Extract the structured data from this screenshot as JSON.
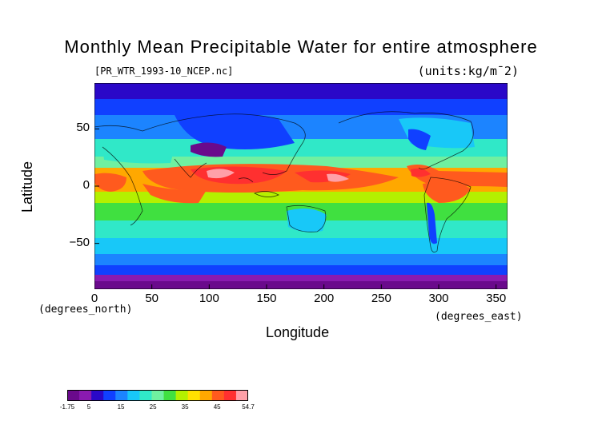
{
  "title": "Monthly Mean Precipitable Water for entire atmosphere",
  "file_label": "[PR_WTR_1993-10_NCEP.nc]",
  "units_label": "(units:kg/m^2)",
  "colors": {
    "scale": [
      "#6a0a8c",
      "#8a1ab0",
      "#2a08c8",
      "#1040ff",
      "#1c84ff",
      "#18c8f8",
      "#30e8c8",
      "#70f0a0",
      "#40e040",
      "#b4f000",
      "#ffe000",
      "#ffa800",
      "#ff5a1e",
      "#ff3030",
      "#ffa0a8"
    ]
  },
  "chart_data": {
    "type": "heatmap",
    "xlabel": "Longitude",
    "ylabel": "Latitude",
    "x_unit": "(degrees_east)",
    "y_unit": "(degrees_north)",
    "xlim": [
      0,
      360
    ],
    "ylim": [
      -90,
      90
    ],
    "xticks": [
      0,
      50,
      100,
      150,
      200,
      250,
      300,
      350
    ],
    "yticks": [
      50,
      0,
      -50
    ],
    "colorbar": {
      "min": -1.75,
      "max": 54.7,
      "tick_labels": [
        "-1.75",
        "5",
        "15",
        "25",
        "35",
        "45",
        "54.7"
      ],
      "tick_values": [
        -1.75,
        5,
        15,
        25,
        35,
        45,
        54.7
      ]
    }
  }
}
